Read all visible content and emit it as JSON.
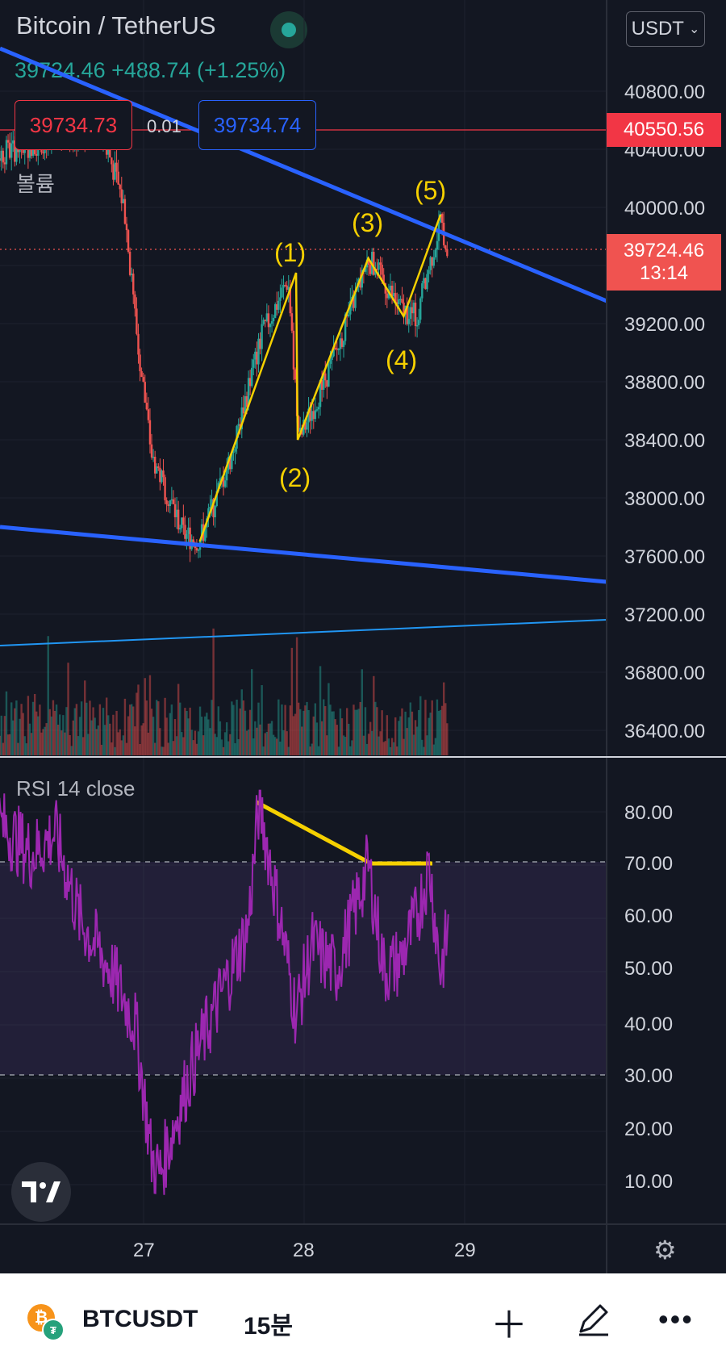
{
  "header": {
    "title": "Bitcoin / TetherUS",
    "price_line": "39724.46 +488.74 (+1.25%)",
    "currency": "USDT"
  },
  "order": {
    "sell_price": "39734.73",
    "spread": "0.01",
    "buy_price": "39734.74"
  },
  "volume_label": "볼륨",
  "price_axis": [
    "40800.00",
    "40400.00",
    "40000.00",
    "39200.00",
    "38800.00",
    "38400.00",
    "38000.00",
    "37600.00",
    "37200.00",
    "36800.00",
    "36400.00"
  ],
  "alert_badge": "40550.56",
  "last_badge": {
    "price": "39724.46",
    "countdown": "13:14"
  },
  "waves": [
    "(1)",
    "(2)",
    "(3)",
    "(4)",
    "(5)"
  ],
  "rsi": {
    "label": "RSI 14 close",
    "axis": [
      "80.00",
      "70.00",
      "60.00",
      "50.00",
      "40.00",
      "30.00",
      "20.00",
      "10.00"
    ]
  },
  "time_axis": [
    "27",
    "28",
    "29"
  ],
  "bottom": {
    "symbol": "BTCUSDT",
    "interval": "15분"
  },
  "colors": {
    "bg": "#131722",
    "up": "#26a69a",
    "down": "#ef5350",
    "trend": "#2962ff",
    "wave": "#f5d000",
    "rsi": "#9c27b0"
  },
  "icons": {
    "logo": "tradingview-logo-icon",
    "settings": "gear-icon",
    "add": "plus-icon",
    "draw": "pen-icon",
    "more": "more-icon"
  },
  "chart_data": {
    "type": "candlestick",
    "title": "Bitcoin / TetherUS",
    "x_ticks": [
      "27",
      "28",
      "29"
    ],
    "ylim": [
      36200,
      41100
    ],
    "series": [
      {
        "name": "price",
        "x": [
          26.0,
          26.05,
          26.5,
          26.75,
          26.88,
          26.96,
          27.05,
          27.25,
          27.35,
          27.55,
          27.73,
          27.9,
          27.97,
          28.2,
          28.4,
          28.6,
          28.7,
          28.85,
          28.9
        ],
        "y": [
          39400,
          40350,
          40500,
          40500,
          40000,
          39100,
          38300,
          37750,
          37700,
          38300,
          39100,
          39500,
          38400,
          39000,
          39650,
          39300,
          39250,
          39900,
          39724
        ]
      },
      {
        "name": "wave",
        "x": [
          27.35,
          27.95,
          27.96,
          28.4,
          28.62,
          28.85
        ],
        "y": [
          37700,
          39550,
          38400,
          39650,
          39250,
          39950
        ]
      }
    ],
    "alert_level": 40550.56,
    "last_price": 39724.46,
    "rsi": {
      "ylim": [
        5,
        85
      ],
      "bands": [
        30,
        70
      ],
      "x": [
        26.0,
        26.1,
        26.3,
        26.45,
        26.6,
        26.8,
        26.95,
        27.05,
        27.1,
        27.2,
        27.3,
        27.5,
        27.65,
        27.72,
        27.85,
        27.95,
        28.05,
        28.2,
        28.4,
        28.5,
        28.6,
        28.7,
        28.78,
        28.85,
        28.9
      ],
      "y": [
        60,
        78,
        72,
        76,
        60,
        50,
        40,
        15,
        12,
        22,
        32,
        47,
        58,
        82,
        60,
        42,
        55,
        50,
        70,
        50,
        52,
        60,
        70,
        50,
        58
      ]
    }
  }
}
